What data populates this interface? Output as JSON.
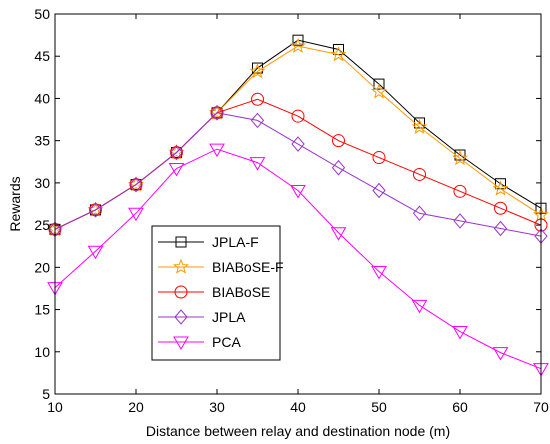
{
  "chart_data": {
    "type": "line",
    "title": "",
    "xlabel": "Distance between relay and destination node (m)",
    "ylabel": "Rewards",
    "xlim": [
      10,
      70
    ],
    "ylim": [
      5,
      50
    ],
    "x_ticks": [
      10,
      20,
      30,
      40,
      50,
      60,
      70
    ],
    "y_ticks": [
      5,
      10,
      15,
      20,
      25,
      30,
      35,
      40,
      45,
      50
    ],
    "grid": false,
    "legend_position": "bottom-left",
    "x": [
      10,
      15,
      20,
      25,
      30,
      35,
      40,
      45,
      50,
      55,
      60,
      65,
      70
    ],
    "series": [
      {
        "name": "JPLA-F",
        "color": "#000000",
        "marker": "square",
        "values": [
          24.5,
          26.8,
          29.8,
          33.6,
          38.3,
          43.6,
          46.9,
          45.8,
          41.7,
          37.1,
          33.3,
          29.9,
          27.0
        ]
      },
      {
        "name": "BIABoSE-F",
        "color": "#FF9900",
        "marker": "star",
        "values": [
          24.5,
          26.8,
          29.8,
          33.6,
          38.3,
          43.2,
          46.2,
          45.2,
          40.8,
          36.6,
          32.9,
          29.3,
          26.2
        ]
      },
      {
        "name": "BIABoSE",
        "color": "#FF0000",
        "marker": "circle",
        "values": [
          24.5,
          26.8,
          29.8,
          33.6,
          38.3,
          39.9,
          37.9,
          35.0,
          33.0,
          31.0,
          29.0,
          27.0,
          25.0
        ]
      },
      {
        "name": "JPLA",
        "color": "#9933CC",
        "marker": "diamond",
        "values": [
          24.5,
          26.8,
          29.8,
          33.6,
          38.3,
          37.4,
          34.6,
          31.8,
          29.1,
          26.4,
          25.5,
          24.6,
          23.7
        ]
      },
      {
        "name": "PCA",
        "color": "#FF00FF",
        "marker": "triangle-down",
        "values": [
          17.6,
          21.9,
          26.4,
          31.7,
          34.0,
          32.4,
          29.1,
          24.1,
          19.5,
          15.5,
          12.4,
          9.9,
          8.0
        ]
      }
    ]
  }
}
